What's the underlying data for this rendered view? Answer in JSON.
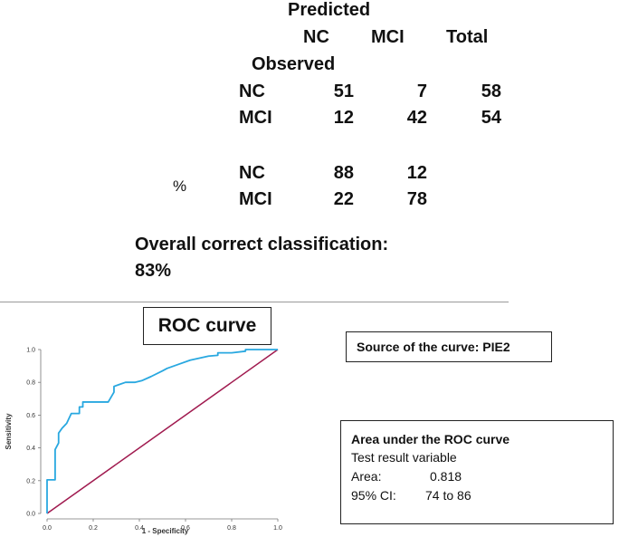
{
  "table": {
    "predicted_label": "Predicted",
    "observed_label": "Observed",
    "col_headers": [
      "NC",
      "MCI",
      "Total"
    ],
    "count_rows": [
      {
        "label": "NC",
        "values": [
          "51",
          "7",
          "58"
        ]
      },
      {
        "label": "MCI",
        "values": [
          "12",
          "42",
          "54"
        ]
      }
    ],
    "percent_symbol": "%",
    "percent_rows": [
      {
        "label": "NC",
        "values": [
          "88",
          "12"
        ]
      },
      {
        "label": "MCI",
        "values": [
          "22",
          "78"
        ]
      }
    ],
    "overall_line1": "Overall correct classification:",
    "overall_line2": "83%"
  },
  "source_box": {
    "text": "Source of the curve: PIE2"
  },
  "auc_box": {
    "title": "Area under the ROC curve",
    "line1": "Test result variable",
    "area_label": "Area:",
    "area_value": "0.818",
    "ci_label": "95% CI:",
    "ci_value": "74 to 86"
  },
  "chart_data": {
    "type": "line",
    "title": "ROC curve",
    "xlabel": "1 - Specificity",
    "ylabel": "Sensitivity",
    "xlim": [
      0,
      1
    ],
    "ylim": [
      0,
      1
    ],
    "x_ticks": [
      "0.0",
      "0.2",
      "0.4",
      "0.6",
      "0.8",
      "1.0"
    ],
    "y_ticks": [
      "0.0",
      "0.2",
      "0.4",
      "0.6",
      "0.8",
      "1.0"
    ],
    "grid": false,
    "colors": {
      "roc": "#29a8e0",
      "reference": "#a01a4f"
    },
    "series": [
      {
        "x": [
          0,
          0,
          0.012,
          0.012,
          0.035,
          0.035,
          0.05,
          0.05,
          0.065,
          0.085,
          0.105,
          0.105,
          0.14,
          0.14,
          0.155,
          0.155,
          0.265,
          0.29,
          0.29,
          0.31,
          0.34,
          0.38,
          0.41,
          0.45,
          0.5,
          0.52,
          0.56,
          0.62,
          0.7,
          0.74,
          0.74,
          0.8,
          0.86,
          0.86,
          1.0
        ],
        "y": [
          0,
          0.205,
          0.205,
          0.205,
          0.205,
          0.39,
          0.43,
          0.49,
          0.52,
          0.55,
          0.61,
          0.61,
          0.61,
          0.65,
          0.65,
          0.68,
          0.68,
          0.74,
          0.775,
          0.785,
          0.8,
          0.8,
          0.81,
          0.835,
          0.87,
          0.885,
          0.905,
          0.935,
          0.96,
          0.965,
          0.98,
          0.98,
          0.99,
          1.0,
          1.0
        ]
      },
      {
        "x": [
          0,
          1
        ],
        "y": [
          0,
          1
        ]
      }
    ]
  }
}
